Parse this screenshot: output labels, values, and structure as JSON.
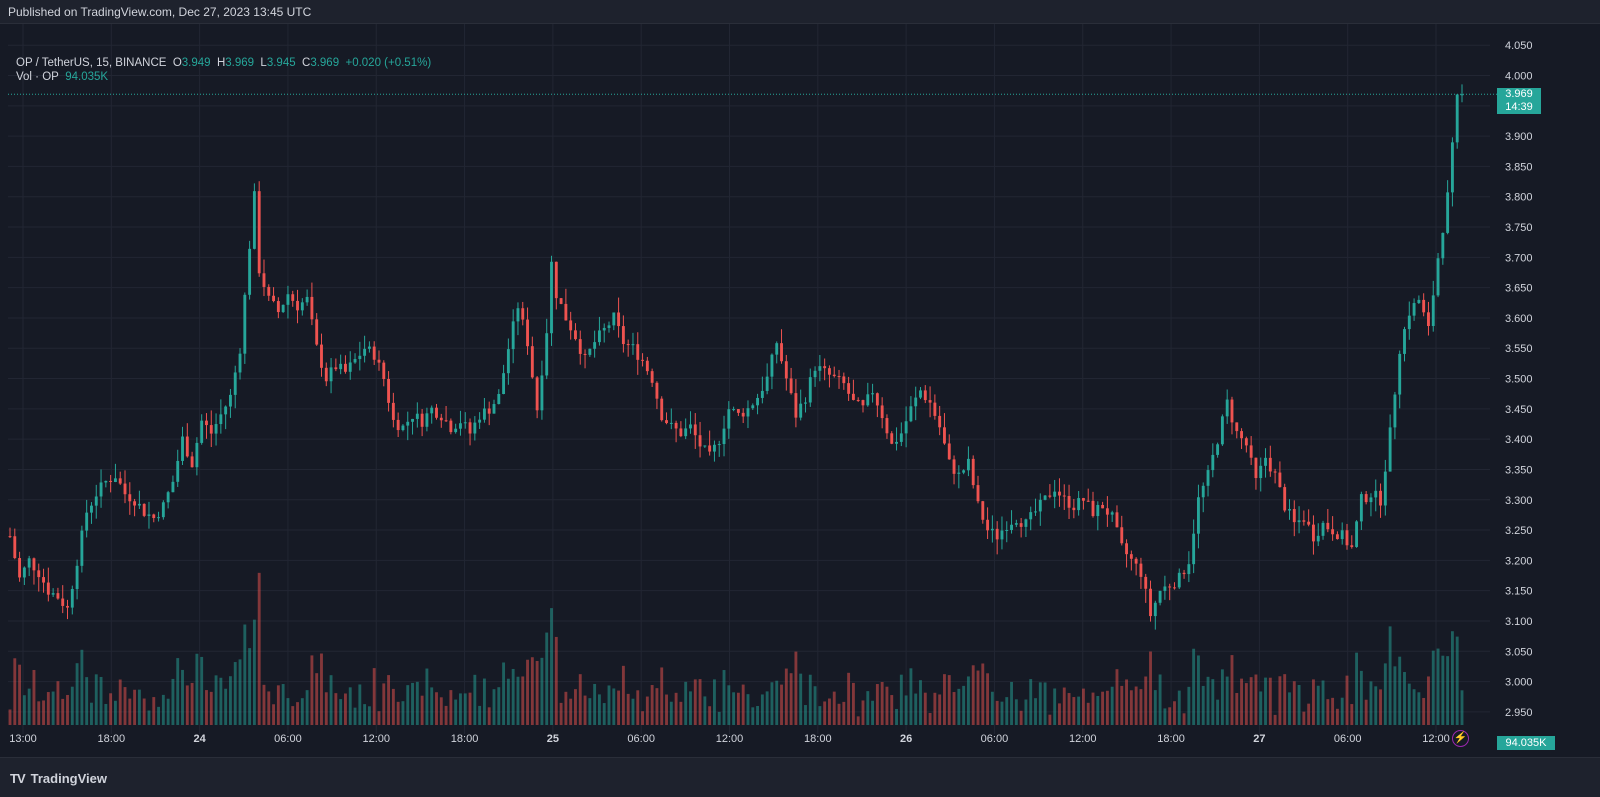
{
  "header": {
    "published": "Published on TradingView.com, Dec 27, 2023 13:45 UTC"
  },
  "legend": {
    "symbol": "OP / TetherUS, 15, BINANCE",
    "o_label": "O",
    "o_value": "3.949",
    "h_label": "H",
    "h_value": "3.969",
    "l_label": "L",
    "l_value": "3.945",
    "c_label": "C",
    "c_value": "3.969",
    "change": "+0.020 (+0.51%)",
    "vol_label": "Vol · OP",
    "vol_value": "94.035K"
  },
  "price_tag": {
    "price": "3.969",
    "countdown": "14:39"
  },
  "volume_tag": "94.035K",
  "footer": {
    "brand_icon": "TV",
    "brand": "TradingView"
  },
  "colors": {
    "up": "#26a69a",
    "down": "#ef5350",
    "background": "#161a25",
    "grid": "#222633",
    "text": "#d1d4dc"
  },
  "chart_data": {
    "type": "candlestick",
    "symbol": "OP / TetherUS",
    "interval": "15",
    "exchange": "BINANCE",
    "y_ticks": [
      "4.050",
      "4.000",
      "3.950",
      "3.900",
      "3.850",
      "3.800",
      "3.750",
      "3.700",
      "3.650",
      "3.600",
      "3.550",
      "3.500",
      "3.450",
      "3.400",
      "3.350",
      "3.300",
      "3.250",
      "3.200",
      "3.150",
      "3.100",
      "3.050",
      "3.000",
      "2.950"
    ],
    "ylim": [
      2.93,
      4.085
    ],
    "x_ticks": [
      "13:00",
      "18:00",
      "24",
      "06:00",
      "12:00",
      "18:00",
      "25",
      "06:00",
      "12:00",
      "18:00",
      "26",
      "06:00",
      "12:00",
      "18:00",
      "27",
      "06:00",
      "12:00"
    ],
    "last_price": 3.969,
    "close_path": [
      [
        0,
        3.24
      ],
      [
        2,
        3.17
      ],
      [
        4,
        3.2
      ],
      [
        6,
        3.18
      ],
      [
        8,
        3.15
      ],
      [
        10,
        3.14
      ],
      [
        12,
        3.12
      ],
      [
        14,
        3.2
      ],
      [
        16,
        3.28
      ],
      [
        18,
        3.31
      ],
      [
        20,
        3.33
      ],
      [
        22,
        3.34
      ],
      [
        24,
        3.31
      ],
      [
        26,
        3.3
      ],
      [
        28,
        3.28
      ],
      [
        30,
        3.27
      ],
      [
        32,
        3.29
      ],
      [
        34,
        3.33
      ],
      [
        36,
        3.4
      ],
      [
        38,
        3.36
      ],
      [
        40,
        3.43
      ],
      [
        42,
        3.41
      ],
      [
        44,
        3.44
      ],
      [
        46,
        3.47
      ],
      [
        48,
        3.55
      ],
      [
        50,
        3.72
      ],
      [
        51,
        3.8
      ],
      [
        52,
        3.68
      ],
      [
        54,
        3.63
      ],
      [
        56,
        3.61
      ],
      [
        58,
        3.64
      ],
      [
        60,
        3.62
      ],
      [
        62,
        3.63
      ],
      [
        64,
        3.55
      ],
      [
        66,
        3.5
      ],
      [
        68,
        3.52
      ],
      [
        70,
        3.51
      ],
      [
        72,
        3.53
      ],
      [
        74,
        3.55
      ],
      [
        76,
        3.54
      ],
      [
        78,
        3.5
      ],
      [
        80,
        3.43
      ],
      [
        82,
        3.42
      ],
      [
        84,
        3.44
      ],
      [
        86,
        3.43
      ],
      [
        88,
        3.45
      ],
      [
        90,
        3.44
      ],
      [
        92,
        3.42
      ],
      [
        94,
        3.43
      ],
      [
        96,
        3.41
      ],
      [
        98,
        3.44
      ],
      [
        100,
        3.45
      ],
      [
        102,
        3.47
      ],
      [
        104,
        3.55
      ],
      [
        106,
        3.62
      ],
      [
        108,
        3.56
      ],
      [
        110,
        3.45
      ],
      [
        112,
        3.58
      ],
      [
        113,
        3.69
      ],
      [
        114,
        3.64
      ],
      [
        116,
        3.6
      ],
      [
        118,
        3.57
      ],
      [
        120,
        3.53
      ],
      [
        122,
        3.56
      ],
      [
        124,
        3.58
      ],
      [
        126,
        3.6
      ],
      [
        128,
        3.56
      ],
      [
        130,
        3.55
      ],
      [
        132,
        3.53
      ],
      [
        134,
        3.5
      ],
      [
        136,
        3.44
      ],
      [
        138,
        3.42
      ],
      [
        140,
        3.41
      ],
      [
        142,
        3.42
      ],
      [
        144,
        3.39
      ],
      [
        146,
        3.37
      ],
      [
        148,
        3.4
      ],
      [
        150,
        3.45
      ],
      [
        152,
        3.44
      ],
      [
        154,
        3.45
      ],
      [
        156,
        3.47
      ],
      [
        158,
        3.5
      ],
      [
        160,
        3.56
      ],
      [
        162,
        3.5
      ],
      [
        164,
        3.44
      ],
      [
        166,
        3.47
      ],
      [
        168,
        3.52
      ],
      [
        170,
        3.51
      ],
      [
        172,
        3.5
      ],
      [
        174,
        3.49
      ],
      [
        176,
        3.46
      ],
      [
        178,
        3.45
      ],
      [
        180,
        3.48
      ],
      [
        182,
        3.44
      ],
      [
        184,
        3.39
      ],
      [
        186,
        3.41
      ],
      [
        188,
        3.45
      ],
      [
        190,
        3.48
      ],
      [
        192,
        3.46
      ],
      [
        194,
        3.42
      ],
      [
        196,
        3.36
      ],
      [
        198,
        3.34
      ],
      [
        200,
        3.36
      ],
      [
        202,
        3.29
      ],
      [
        204,
        3.25
      ],
      [
        206,
        3.24
      ],
      [
        208,
        3.26
      ],
      [
        210,
        3.27
      ],
      [
        212,
        3.26
      ],
      [
        214,
        3.28
      ],
      [
        216,
        3.3
      ],
      [
        218,
        3.32
      ],
      [
        220,
        3.3
      ],
      [
        222,
        3.29
      ],
      [
        224,
        3.3
      ],
      [
        226,
        3.28
      ],
      [
        228,
        3.29
      ],
      [
        230,
        3.27
      ],
      [
        232,
        3.22
      ],
      [
        234,
        3.2
      ],
      [
        236,
        3.18
      ],
      [
        238,
        3.11
      ],
      [
        240,
        3.15
      ],
      [
        242,
        3.16
      ],
      [
        244,
        3.17
      ],
      [
        246,
        3.2
      ],
      [
        248,
        3.3
      ],
      [
        250,
        3.34
      ],
      [
        252,
        3.4
      ],
      [
        254,
        3.46
      ],
      [
        256,
        3.41
      ],
      [
        258,
        3.39
      ],
      [
        260,
        3.33
      ],
      [
        262,
        3.37
      ],
      [
        264,
        3.34
      ],
      [
        266,
        3.29
      ],
      [
        268,
        3.26
      ],
      [
        270,
        3.27
      ],
      [
        272,
        3.24
      ],
      [
        274,
        3.26
      ],
      [
        276,
        3.25
      ],
      [
        278,
        3.24
      ],
      [
        280,
        3.22
      ],
      [
        282,
        3.3
      ],
      [
        284,
        3.31
      ],
      [
        286,
        3.3
      ],
      [
        288,
        3.41
      ],
      [
        290,
        3.55
      ],
      [
        292,
        3.61
      ],
      [
        294,
        3.63
      ],
      [
        296,
        3.58
      ],
      [
        298,
        3.7
      ],
      [
        300,
        3.8
      ],
      [
        301,
        3.88
      ],
      [
        302,
        3.96
      ],
      [
        303,
        3.969
      ]
    ]
  }
}
